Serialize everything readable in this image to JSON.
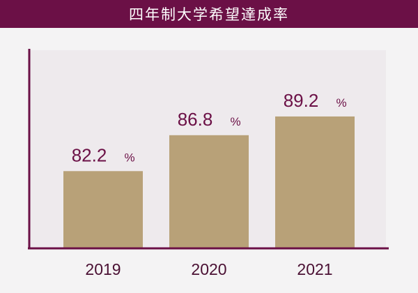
{
  "header": {
    "title": "四年制大学希望達成率"
  },
  "colors": {
    "header_bg": "#6b1046",
    "plot_bg": "#eeeaed",
    "bar": "#b8a178",
    "axis": "#6b1046",
    "value_text": "#6b1046"
  },
  "chart_data": {
    "type": "bar",
    "title": "四年制大学希望達成率",
    "categories": [
      "2019",
      "2020",
      "2021"
    ],
    "values": [
      82.2,
      86.8,
      89.2
    ],
    "value_labels": [
      "82.2",
      "86.8",
      "89.2"
    ],
    "unit": "%",
    "xlabel": "",
    "ylabel": "",
    "grid": false,
    "legend": "none"
  }
}
